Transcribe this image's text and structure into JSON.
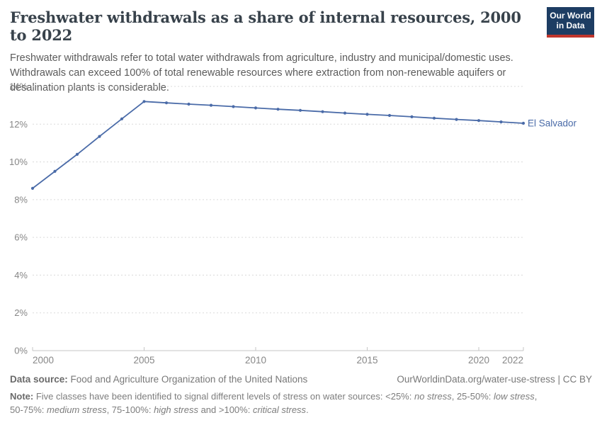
{
  "header": {
    "title": "Freshwater withdrawals as a share of internal resources, 2000 to 2022",
    "subtitle_lines": [
      "Freshwater withdrawals refer to total water withdrawals from agriculture, industry and municipal/domestic uses.",
      "Withdrawals can exceed 100% of total renewable resources where extraction from non-renewable aquifers or",
      "desalination plants is considerable."
    ],
    "logo": {
      "line1": "Our World",
      "line2": "in Data",
      "bg_color": "#1d3d63",
      "stripe_color": "#c0352c"
    }
  },
  "chart_data": {
    "type": "line",
    "title": "Freshwater withdrawals as a share of internal resources, 2000 to 2022",
    "x": [
      2000,
      2001,
      2002,
      2003,
      2004,
      2005,
      2006,
      2007,
      2008,
      2009,
      2010,
      2011,
      2012,
      2013,
      2014,
      2015,
      2016,
      2017,
      2018,
      2019,
      2020,
      2021,
      2022
    ],
    "series": [
      {
        "name": "El Salvador",
        "color": "#4a6ba8",
        "values": [
          8.6,
          9.5,
          10.4,
          11.35,
          12.28,
          13.2,
          13.13,
          13.06,
          13.0,
          12.93,
          12.86,
          12.79,
          12.73,
          12.66,
          12.59,
          12.52,
          12.46,
          12.39,
          12.32,
          12.25,
          12.19,
          12.12,
          12.05
        ]
      }
    ],
    "xlabel": "",
    "ylabel": "",
    "ylim": [
      0,
      14
    ],
    "yticks": [
      0,
      2,
      4,
      6,
      8,
      10,
      12,
      14
    ],
    "ytick_suffix": "%",
    "xticks": [
      2000,
      2005,
      2010,
      2015,
      2020,
      2022
    ],
    "grid": "horizontal-dashed",
    "legend_position": "end-of-line-label",
    "entity_label": "El Salvador",
    "colors": {
      "gridline": "#dadada",
      "axis_line": "#c6c6c6",
      "tick_label": "#878787"
    }
  },
  "footer": {
    "source_label": "Data source:",
    "source_text": " Food and Agriculture Organization of the United Nations",
    "link_text": "OurWorldinData.org/water-use-stress",
    "separator": " | ",
    "license_text": "CC BY",
    "note_segments": [
      {
        "text": "Note:",
        "bold": true
      },
      {
        "text": " Five classes have been identified to signal different levels of stress on water sources: <25%: "
      },
      {
        "text": "no stress",
        "italic": true
      },
      {
        "text": ", 25-50%: "
      },
      {
        "text": "low stress",
        "italic": true
      },
      {
        "text": ", 50-75%: "
      },
      {
        "text": "medium stress",
        "italic": true
      },
      {
        "text": ", 75-100%: "
      },
      {
        "text": "high stress",
        "italic": true
      },
      {
        "text": " and >100%: "
      },
      {
        "text": "critical stress",
        "italic": true
      },
      {
        "text": "."
      }
    ]
  }
}
